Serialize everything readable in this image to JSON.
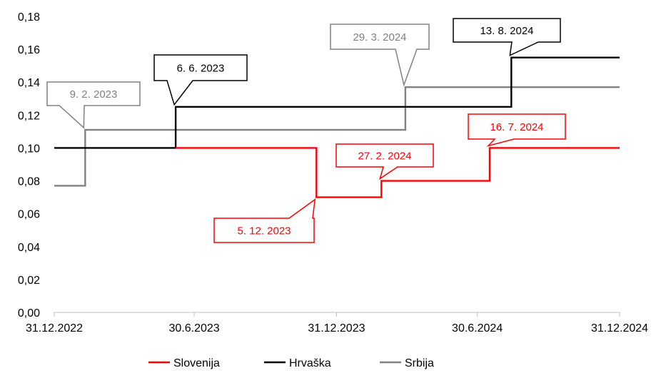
{
  "chart_data": {
    "type": "line",
    "title": "",
    "xlabel": "",
    "ylabel": "",
    "ylim": [
      0,
      0.18
    ],
    "y_ticks": [
      "0,00",
      "0,02",
      "0,04",
      "0,06",
      "0,08",
      "0,10",
      "0,12",
      "0,14",
      "0,16",
      "0,18"
    ],
    "x_ticks": [
      "31.12.2022",
      "30.6.2023",
      "31.12.2023",
      "30.6.2024",
      "31.12.2024"
    ],
    "x_tick_dates": [
      "2022-12-31",
      "2023-06-30",
      "2023-12-31",
      "2024-06-30",
      "2024-12-31"
    ],
    "xlim": [
      "2022-12-31",
      "2024-12-31"
    ],
    "step_style": "post",
    "grid": false,
    "legend_position": "bottom",
    "series": [
      {
        "name": "Slovenija",
        "color": "#ff0000",
        "points": [
          {
            "x": "2023-06-06",
            "y": 0.1
          },
          {
            "x": "2023-12-05",
            "y": 0.07
          },
          {
            "x": "2024-02-27",
            "y": 0.08
          },
          {
            "x": "2024-07-16",
            "y": 0.1
          },
          {
            "x": "2024-12-31",
            "y": 0.1
          }
        ]
      },
      {
        "name": "Hrvaška",
        "color": "#000000",
        "points": [
          {
            "x": "2022-12-31",
            "y": 0.1
          },
          {
            "x": "2023-06-06",
            "y": 0.125
          },
          {
            "x": "2024-08-13",
            "y": 0.155
          },
          {
            "x": "2024-12-31",
            "y": 0.155
          }
        ]
      },
      {
        "name": "Srbija",
        "color": "#808080",
        "points": [
          {
            "x": "2022-12-31",
            "y": 0.077
          },
          {
            "x": "2023-02-09",
            "y": 0.111
          },
          {
            "x": "2024-03-29",
            "y": 0.137
          },
          {
            "x": "2024-12-31",
            "y": 0.137
          }
        ]
      }
    ],
    "annotations": [
      {
        "text": "9. 2. 2023",
        "series": "Srbija",
        "x": "2023-02-09",
        "y": 0.111,
        "color": "#808080"
      },
      {
        "text": "6. 6. 2023",
        "series": "Hrvaška",
        "x": "2023-06-06",
        "y": 0.125,
        "color": "#000000"
      },
      {
        "text": "29. 3. 2024",
        "series": "Srbija",
        "x": "2024-03-29",
        "y": 0.137,
        "color": "#808080"
      },
      {
        "text": "13. 8. 2024",
        "series": "Hrvaška",
        "x": "2024-08-13",
        "y": 0.155,
        "color": "#000000"
      },
      {
        "text": "5. 12. 2023",
        "series": "Slovenija",
        "x": "2023-12-05",
        "y": 0.07,
        "color": "#ff0000"
      },
      {
        "text": "27. 2. 2024",
        "series": "Slovenija",
        "x": "2024-02-27",
        "y": 0.08,
        "color": "#ff0000"
      },
      {
        "text": "16. 7. 2024",
        "series": "Slovenija",
        "x": "2024-07-16",
        "y": 0.1,
        "color": "#ff0000"
      }
    ]
  }
}
